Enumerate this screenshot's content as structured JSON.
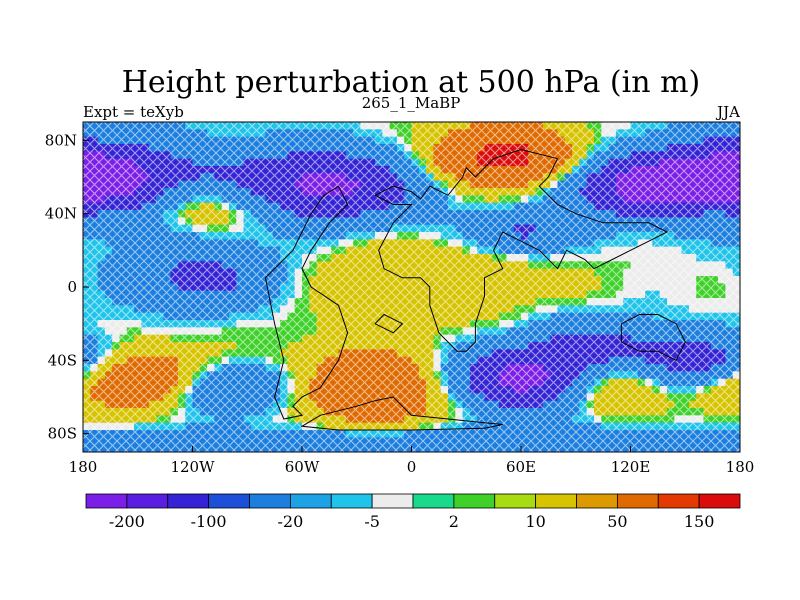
{
  "chart_data": {
    "type": "heatmap",
    "title": "Height perturbation at 500 hPa (in m)",
    "left_string": "Expt = teXyb",
    "center_string": "265_1_MaBP",
    "right_string": "JJA",
    "xlim": [
      -180,
      180
    ],
    "ylim": [
      -90,
      90
    ],
    "x_ticks": [
      {
        "value": -180,
        "label": "180"
      },
      {
        "value": -120,
        "label": "120W"
      },
      {
        "value": -60,
        "label": "60W"
      },
      {
        "value": 0,
        "label": "0"
      },
      {
        "value": 60,
        "label": "60E"
      },
      {
        "value": 120,
        "label": "120E"
      },
      {
        "value": 180,
        "label": "180"
      }
    ],
    "y_ticks": [
      {
        "value": 80,
        "label": "80N"
      },
      {
        "value": 40,
        "label": "40N"
      },
      {
        "value": 0,
        "label": "0"
      },
      {
        "value": -40,
        "label": "40S"
      },
      {
        "value": -80,
        "label": "80S"
      }
    ],
    "colorbar": {
      "colors": [
        "#7b1fe8",
        "#5a1ee0",
        "#3523d6",
        "#1d4fd8",
        "#1c7fe0",
        "#1ea2e6",
        "#20c4ea",
        "#ececec",
        "#19d98a",
        "#3fd12a",
        "#a8dc12",
        "#d7c400",
        "#dd9a00",
        "#e06a00",
        "#e23a00",
        "#dd0c0c"
      ],
      "labels": [
        {
          "after_box": 1,
          "text": "-200"
        },
        {
          "after_box": 3,
          "text": "-100"
        },
        {
          "after_box": 5,
          "text": "-20"
        },
        {
          "after_box": 7,
          "text": "-5"
        },
        {
          "after_box": 9,
          "text": "2"
        },
        {
          "after_box": 11,
          "text": "10"
        },
        {
          "after_box": 13,
          "text": "50"
        },
        {
          "after_box": 15,
          "text": "150"
        }
      ]
    },
    "field": {
      "bins": [
        -200,
        -100,
        -20,
        -5,
        2,
        10,
        50,
        150
      ],
      "features": [
        {
          "lon": -50,
          "lat": 55,
          "amp": -230,
          "slon": 40,
          "slat": 14
        },
        {
          "lon": -160,
          "lat": 55,
          "amp": -170,
          "slon": 35,
          "slat": 15
        },
        {
          "lon": 175,
          "lat": 60,
          "amp": -170,
          "slon": 30,
          "slat": 15
        },
        {
          "lon": 125,
          "lat": 55,
          "amp": -220,
          "slon": 30,
          "slat": 12
        },
        {
          "lon": 50,
          "lat": 70,
          "amp": 190,
          "slon": 30,
          "slat": 12
        },
        {
          "lon": -115,
          "lat": 45,
          "amp": 120,
          "slon": 30,
          "slat": 10
        },
        {
          "lon": 170,
          "lat": 45,
          "amp": 80,
          "slon": 25,
          "slat": 10
        },
        {
          "lon": 60,
          "lat": 30,
          "amp": -120,
          "slon": 20,
          "slat": 8
        },
        {
          "lon": -115,
          "lat": 5,
          "amp": -130,
          "slon": 28,
          "slat": 12
        },
        {
          "lon": 10,
          "lat": 5,
          "amp": 40,
          "slon": 50,
          "slat": 20
        },
        {
          "lon": -20,
          "lat": -55,
          "amp": 130,
          "slon": 35,
          "slat": 15
        },
        {
          "lon": -150,
          "lat": -50,
          "amp": 150,
          "slon": 30,
          "slat": 12
        },
        {
          "lon": 60,
          "lat": -50,
          "amp": -240,
          "slon": 30,
          "slat": 12
        },
        {
          "lon": 160,
          "lat": -40,
          "amp": -150,
          "slon": 28,
          "slat": 10
        },
        {
          "lon": -100,
          "lat": -55,
          "amp": -120,
          "slon": 30,
          "slat": 10
        },
        {
          "lon": 110,
          "lat": -55,
          "amp": 100,
          "slon": 20,
          "slat": 10
        },
        {
          "lon": 100,
          "lat": -30,
          "amp": -100,
          "slon": 25,
          "slat": 10
        },
        {
          "lon": 0,
          "lat": -85,
          "amp": -70,
          "slon": 180,
          "slat": 6
        }
      ]
    },
    "coastlines": [
      [
        [
          -20,
          50
        ],
        [
          -10,
          55
        ],
        [
          0,
          52
        ],
        [
          5,
          48
        ],
        [
          10,
          55
        ],
        [
          20,
          50
        ],
        [
          28,
          60
        ],
        [
          30,
          65
        ],
        [
          35,
          60
        ],
        [
          45,
          70
        ],
        [
          60,
          75
        ],
        [
          80,
          70
        ],
        [
          75,
          60
        ],
        [
          70,
          55
        ],
        [
          80,
          45
        ],
        [
          90,
          40
        ],
        [
          105,
          35
        ],
        [
          130,
          35
        ],
        [
          140,
          30
        ],
        [
          130,
          25
        ],
        [
          120,
          20
        ],
        [
          110,
          15
        ],
        [
          100,
          10
        ],
        [
          95,
          15
        ],
        [
          85,
          20
        ],
        [
          80,
          10
        ],
        [
          75,
          15
        ],
        [
          70,
          20
        ],
        [
          60,
          25
        ],
        [
          50,
          30
        ],
        [
          45,
          20
        ],
        [
          50,
          10
        ],
        [
          40,
          5
        ],
        [
          40,
          -5
        ],
        [
          35,
          -20
        ],
        [
          35,
          -30
        ],
        [
          30,
          -35
        ],
        [
          25,
          -35
        ],
        [
          15,
          -25
        ],
        [
          10,
          -10
        ],
        [
          10,
          0
        ],
        [
          5,
          5
        ],
        [
          -5,
          5
        ],
        [
          -15,
          10
        ],
        [
          -18,
          20
        ],
        [
          -10,
          35
        ],
        [
          -5,
          40
        ],
        [
          0,
          45
        ],
        [
          -10,
          45
        ],
        [
          -20,
          50
        ]
      ],
      [
        [
          -48,
          50
        ],
        [
          -40,
          55
        ],
        [
          -35,
          45
        ],
        [
          -45,
          35
        ],
        [
          -55,
          20
        ],
        [
          -60,
          10
        ],
        [
          -55,
          0
        ],
        [
          -40,
          -10
        ],
        [
          -35,
          -25
        ],
        [
          -40,
          -40
        ],
        [
          -50,
          -55
        ],
        [
          -60,
          -60
        ],
        [
          -65,
          -65
        ],
        [
          -60,
          -70
        ],
        [
          -70,
          -72
        ],
        [
          -75,
          -60
        ],
        [
          -70,
          -40
        ],
        [
          -75,
          -20
        ],
        [
          -78,
          -5
        ],
        [
          -80,
          5
        ],
        [
          -75,
          10
        ],
        [
          -65,
          20
        ],
        [
          -60,
          30
        ],
        [
          -55,
          40
        ],
        [
          -48,
          50
        ]
      ],
      [
        [
          -20,
          -62
        ],
        [
          -10,
          -60
        ],
        [
          0,
          -70
        ],
        [
          20,
          -72
        ],
        [
          40,
          -74
        ],
        [
          50,
          -75
        ],
        [
          40,
          -77
        ],
        [
          0,
          -78
        ],
        [
          -40,
          -78
        ],
        [
          -60,
          -76
        ],
        [
          -50,
          -70
        ],
        [
          -30,
          -65
        ],
        [
          -20,
          -62
        ]
      ],
      [
        [
          115,
          -20
        ],
        [
          125,
          -15
        ],
        [
          135,
          -15
        ],
        [
          145,
          -20
        ],
        [
          150,
          -30
        ],
        [
          145,
          -40
        ],
        [
          135,
          -35
        ],
        [
          125,
          -35
        ],
        [
          115,
          -30
        ],
        [
          115,
          -20
        ]
      ],
      [
        [
          -20,
          -20
        ],
        [
          -15,
          -15
        ],
        [
          -5,
          -20
        ],
        [
          -10,
          -25
        ],
        [
          -20,
          -20
        ]
      ]
    ]
  }
}
